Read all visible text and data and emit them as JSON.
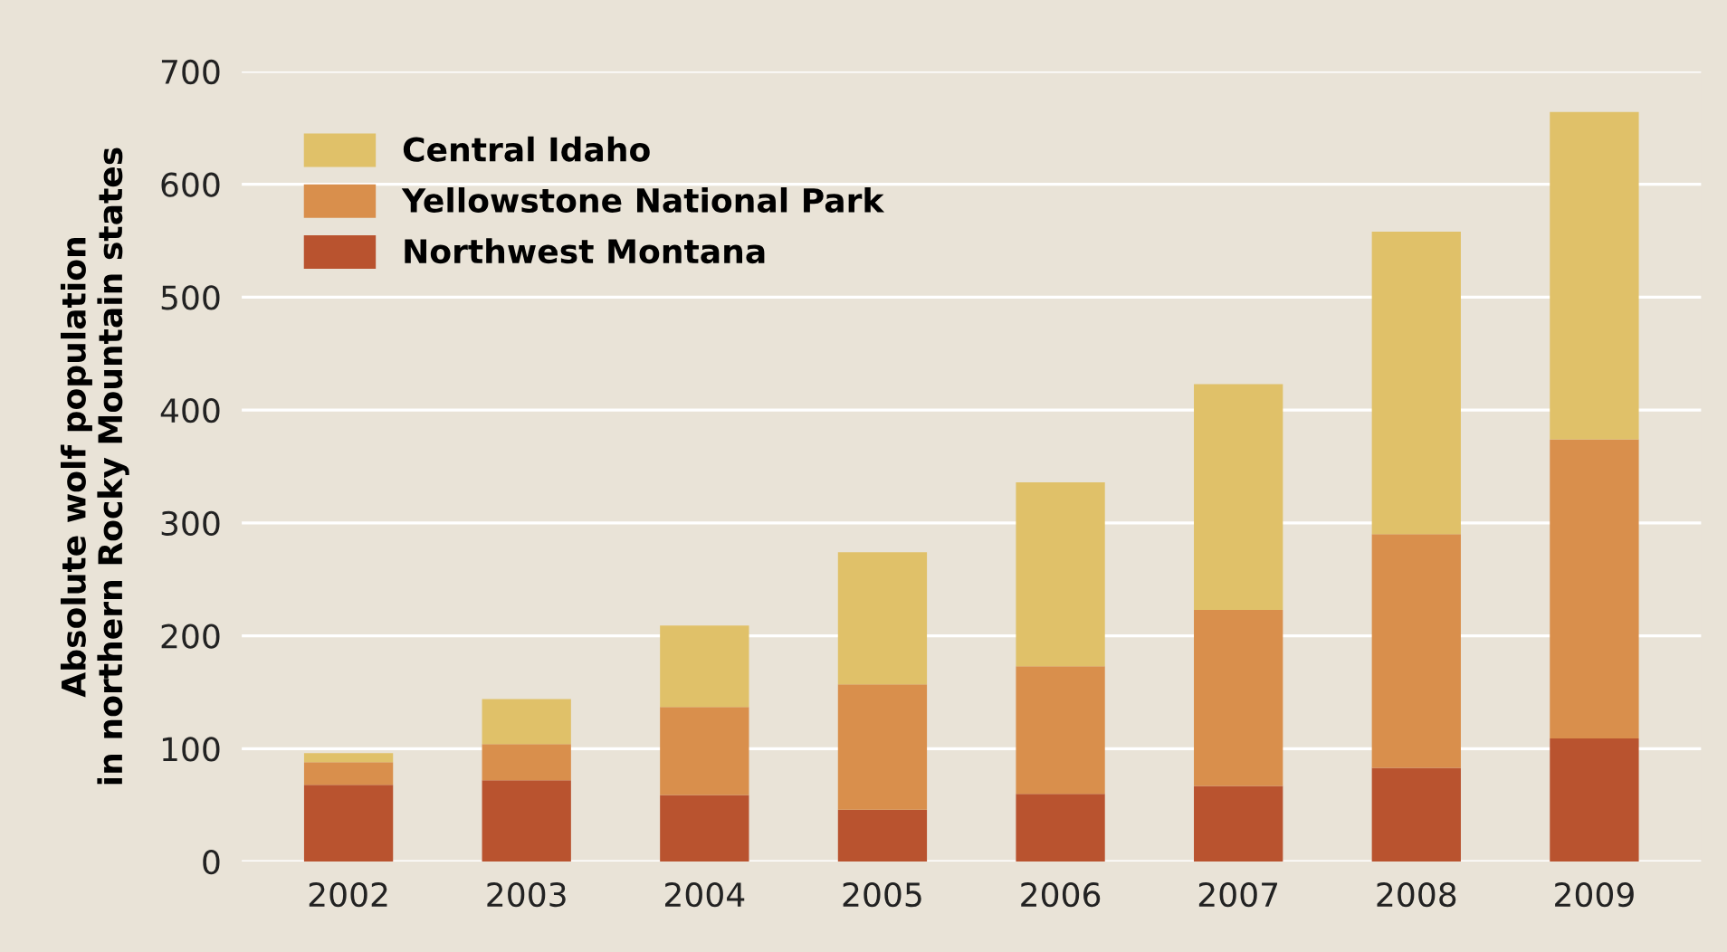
{
  "chart_data": {
    "type": "bar",
    "stacked": true,
    "ylabel": "Absolute wolf population\nin northern Rocky Mountain states",
    "categories": [
      "2002",
      "2003",
      "2004",
      "2005",
      "2006",
      "2007",
      "2008",
      "2009"
    ],
    "series": [
      {
        "name": "Northwest Montana",
        "color": "#b9532f",
        "values": [
          68,
          72,
          59,
          46,
          60,
          67,
          83,
          109
        ]
      },
      {
        "name": "Yellowstone National Park",
        "color": "#d98f4c",
        "values": [
          20,
          32,
          78,
          111,
          113,
          156,
          207,
          265
        ]
      },
      {
        "name": "Central Idaho",
        "color": "#e0c169",
        "values": [
          8,
          40,
          72,
          117,
          163,
          200,
          268,
          290
        ]
      }
    ],
    "ylim": [
      0,
      700
    ],
    "yticks": [
      0,
      100,
      200,
      300,
      400,
      500,
      600,
      700
    ],
    "grid": "y",
    "legend": "top left"
  }
}
